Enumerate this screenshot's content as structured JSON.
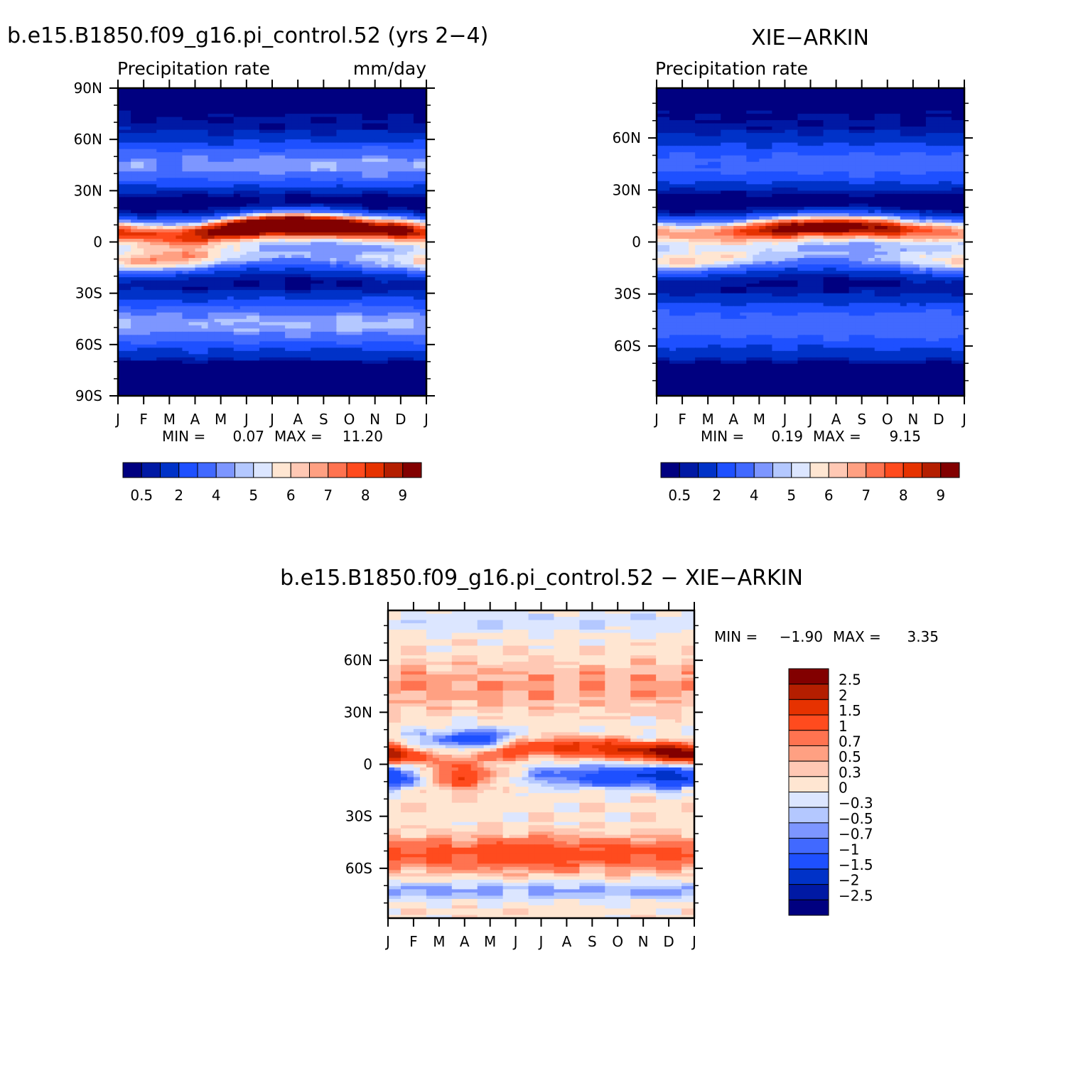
{
  "chart_data": [
    {
      "type": "heatmap",
      "title": "b.e15.B1850.f09_g16.pi_control.52 (yrs 2-4)",
      "left_label": "Precipitation rate",
      "right_label": "mm/day",
      "x_ticks": [
        "J",
        "F",
        "M",
        "A",
        "M",
        "J",
        "J",
        "A",
        "S",
        "O",
        "N",
        "D",
        "J"
      ],
      "y_ticks": [
        "90N",
        "60N",
        "30N",
        "0",
        "30S",
        "60S",
        "90S"
      ],
      "ylim": [
        -90,
        90
      ],
      "min_label": "MIN =",
      "min": "0.07",
      "max_label": "MAX =",
      "max": "11.20",
      "colorbar_labels": [
        "0.5",
        "2",
        "4",
        "5",
        "6",
        "7",
        "8",
        "9"
      ],
      "itcz_lat": [
        6,
        5,
        4,
        5,
        7,
        9,
        10,
        10,
        10,
        9,
        8,
        7,
        6
      ],
      "itcz_peak": [
        6.8,
        6.5,
        6.2,
        7.0,
        8.5,
        10.0,
        11.0,
        11.2,
        10.8,
        9.5,
        8.8,
        8.5,
        6.8
      ],
      "southern_band_peak": [
        6.0,
        6.3,
        6.6,
        6.0,
        4.8,
        4.0,
        3.6,
        3.4,
        3.5,
        3.8,
        4.2,
        5.0,
        6.0
      ],
      "storm_track_peak": [
        4.5,
        4.4,
        4.3,
        4.4,
        4.5,
        4.6,
        4.6,
        4.6,
        4.5,
        4.6,
        4.7,
        4.6,
        4.5
      ]
    },
    {
      "type": "heatmap",
      "title": "XIE-ARKIN",
      "left_label": "Precipitation rate",
      "right_label": "",
      "x_ticks": [
        "J",
        "F",
        "M",
        "A",
        "M",
        "J",
        "J",
        "A",
        "S",
        "O",
        "N",
        "D",
        "J"
      ],
      "y_ticks": [
        "60N",
        "30N",
        "0",
        "30S",
        "60S"
      ],
      "ylim": [
        -88.75,
        88.75
      ],
      "min_label": "MIN =",
      "min": "0.19",
      "max_label": "MAX =",
      "max": "9.15",
      "colorbar_labels": [
        "0.5",
        "2",
        "4",
        "5",
        "6",
        "7",
        "8",
        "9"
      ],
      "itcz_lat": [
        6,
        5,
        5,
        6,
        7,
        8,
        9,
        9,
        9,
        8,
        7,
        6,
        6
      ],
      "itcz_peak": [
        5.8,
        5.6,
        5.8,
        6.5,
        7.8,
        8.8,
        9.1,
        9.15,
        8.9,
        8.2,
        7.2,
        6.4,
        5.8
      ],
      "southern_band_peak": [
        6.0,
        6.0,
        6.0,
        5.4,
        4.5,
        4.0,
        3.7,
        3.6,
        3.8,
        4.3,
        5.0,
        5.8,
        6.0
      ],
      "storm_track_peak": [
        3.8,
        3.7,
        3.6,
        3.6,
        3.7,
        3.8,
        3.8,
        3.8,
        3.8,
        3.9,
        4.0,
        3.9,
        3.8
      ]
    },
    {
      "type": "heatmap",
      "title": "b.e15.B1850.f09_g16.pi_control.52 - XIE-ARKIN",
      "x_ticks": [
        "J",
        "F",
        "M",
        "A",
        "M",
        "J",
        "J",
        "A",
        "S",
        "O",
        "N",
        "D",
        "J"
      ],
      "y_ticks": [
        "60N",
        "30N",
        "0",
        "30S",
        "60S"
      ],
      "ylim": [
        -88.75,
        88.75
      ],
      "min_label": "MIN =",
      "min": "-1.90",
      "max_label": "MAX =",
      "max": "3.35",
      "colorbar_labels": [
        "2.5",
        "2",
        "1.5",
        "1",
        "0.7",
        "0.5",
        "0.3",
        "0",
        "-0.3",
        "-0.5",
        "-0.7",
        "-1",
        "-1.5",
        "-2",
        "-2.5"
      ],
      "itcz_lat": [
        6,
        5,
        4,
        5,
        7,
        9,
        10,
        10,
        10,
        9,
        8,
        7,
        6
      ],
      "itcz_diff": [
        2.5,
        1.2,
        0.6,
        0.4,
        1.2,
        1.4,
        1.4,
        1.5,
        1.8,
        1.9,
        2.3,
        3.2,
        2.5
      ],
      "south_tropics_diff": [
        -1.6,
        -1.0,
        0.8,
        1.2,
        0.6,
        -0.3,
        -0.8,
        -1.0,
        -1.3,
        -1.5,
        -1.6,
        -1.9,
        -1.6
      ],
      "nh_subtropics_diff": [
        -0.2,
        -0.4,
        -0.9,
        -1.2,
        -1.5,
        -0.5,
        -0.2,
        -0.2,
        -0.3,
        -0.2,
        -0.4,
        -0.5,
        -0.2
      ],
      "so_storm_track_diff": [
        0.9,
        0.9,
        0.9,
        1.0,
        1.1,
        1.2,
        1.2,
        1.1,
        1.0,
        1.0,
        1.0,
        0.9,
        0.9
      ]
    }
  ],
  "colors": {
    "levels": [
      "#000080",
      "#0019a4",
      "#0032c8",
      "#1e50ff",
      "#4169ff",
      "#7d96ff",
      "#b4c8ff",
      "#dce6ff",
      "#ffe6d2",
      "#ffc8b4",
      "#ffa082",
      "#ff7350",
      "#ff4b1e",
      "#e63200",
      "#b41e00",
      "#820000"
    ],
    "diff_levels": [
      "#000080",
      "#0019a4",
      "#0032c8",
      "#1e50ff",
      "#4169ff",
      "#7d96ff",
      "#b4c8ff",
      "#dce6ff",
      "#ffe6d2",
      "#ffc8b4",
      "#ffa082",
      "#ff7350",
      "#ff4b1e",
      "#e63200",
      "#b41e00",
      "#820000"
    ]
  }
}
